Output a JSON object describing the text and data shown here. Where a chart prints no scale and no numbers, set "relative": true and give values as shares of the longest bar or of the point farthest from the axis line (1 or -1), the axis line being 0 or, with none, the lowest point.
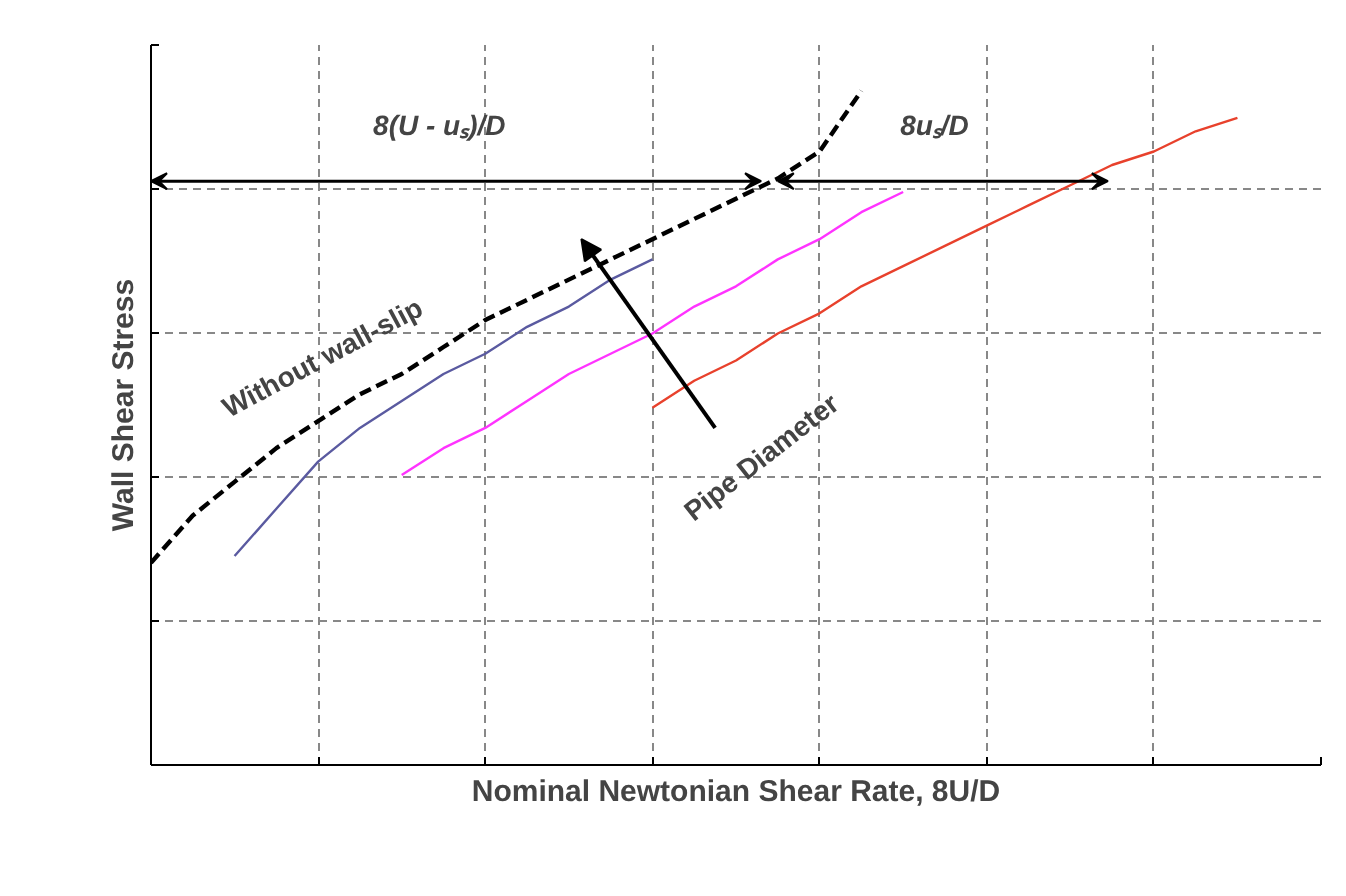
{
  "chart_data": {
    "type": "line",
    "relative": true,
    "xlabel": "Nominal Newtonian Shear Rate, 8U/D",
    "ylabel": "Wall Shear Stress",
    "grid": true,
    "categories": [
      null,
      null,
      null,
      null,
      null,
      null,
      null,
      null,
      null,
      null,
      null,
      null,
      null,
      null,
      null,
      null,
      null,
      null,
      null,
      null,
      null,
      null,
      null,
      null,
      null,
      null,
      null,
      null,
      null
    ],
    "series": [
      {
        "color": "#000000",
        "line_style": "dashed",
        "values": [
          0.3,
          0.37,
          0.42,
          0.47,
          0.51,
          0.55,
          0.58,
          0.62,
          0.66,
          0.69,
          0.72,
          0.75,
          0.78,
          0.81,
          0.84,
          0.87,
          0.91,
          1.0,
          null,
          null,
          null,
          null,
          null,
          null,
          null,
          null,
          null,
          null,
          null
        ]
      },
      {
        "color": "#5a5aa0",
        "values": [
          null,
          null,
          0.31,
          0.38,
          0.45,
          0.5,
          0.54,
          0.58,
          0.61,
          0.65,
          0.68,
          0.72,
          0.75,
          null,
          null,
          null,
          null,
          null,
          null,
          null,
          null,
          null,
          null,
          null,
          null,
          null,
          null,
          null,
          null
        ]
      },
      {
        "color": "#ff33ff",
        "values": [
          null,
          null,
          null,
          null,
          null,
          null,
          0.43,
          0.47,
          0.5,
          0.54,
          0.58,
          0.61,
          0.64,
          0.68,
          0.71,
          0.75,
          0.78,
          0.82,
          0.85,
          null,
          null,
          null,
          null,
          null,
          null,
          null,
          null,
          null,
          null
        ]
      },
      {
        "color": "#e8412c",
        "values": [
          null,
          null,
          null,
          null,
          null,
          null,
          null,
          null,
          null,
          null,
          null,
          null,
          0.53,
          0.57,
          0.6,
          0.64,
          0.67,
          0.71,
          0.74,
          0.77,
          0.8,
          0.83,
          0.86,
          0.89,
          0.91,
          0.94,
          0.96,
          null,
          null
        ]
      }
    ],
    "annotations": [
      "8(U - uₛ)/D",
      "8uₛ/D",
      "Without wall-slip",
      "Pipe Diameter"
    ]
  }
}
